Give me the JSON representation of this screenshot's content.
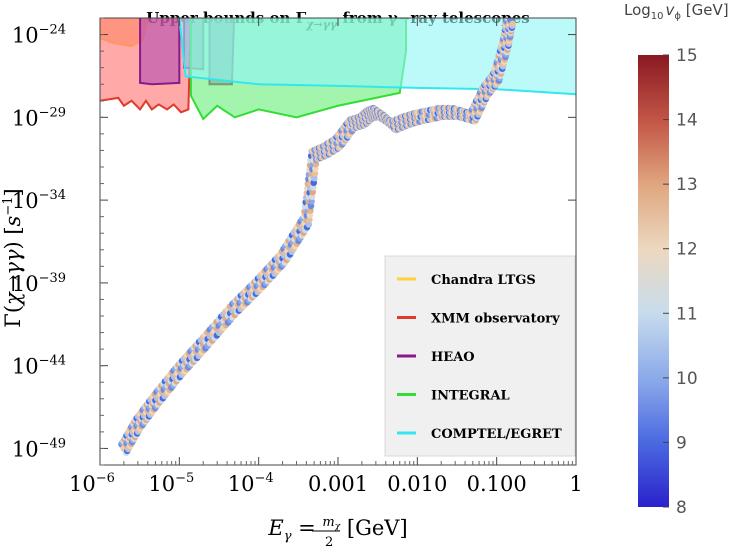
{
  "chart_data": {
    "type": "scatter",
    "title": "Upper bounds on Γ_{χ→γγ} from γ−ray telescopes",
    "xlabel": "E_γ = m_χ / 2 [GeV]",
    "ylabel": "Γ(χ→γγ) [s^-1]",
    "x_scale": "log",
    "y_scale": "log",
    "xlim": [
      1e-06,
      1
    ],
    "ylim": [
      1e-50,
      1e-23
    ],
    "x_ticks": [
      {
        "value": 1e-06,
        "label": "10",
        "exp": "−6"
      },
      {
        "value": 1e-05,
        "label": "10",
        "exp": "−5"
      },
      {
        "value": 0.0001,
        "label": "10",
        "exp": "−4"
      },
      {
        "value": 0.001,
        "label": "0.001",
        "exp": ""
      },
      {
        "value": 0.01,
        "label": "0.010",
        "exp": ""
      },
      {
        "value": 0.1,
        "label": "0.100",
        "exp": ""
      },
      {
        "value": 1,
        "label": "1",
        "exp": ""
      }
    ],
    "y_ticks": [
      {
        "value": 1e-24,
        "label": "10",
        "exp": "−24"
      },
      {
        "value": 1e-29,
        "label": "10",
        "exp": "−29"
      },
      {
        "value": 1e-34,
        "label": "10",
        "exp": "−34"
      },
      {
        "value": 1e-39,
        "label": "10",
        "exp": "−39"
      },
      {
        "value": 1e-44,
        "label": "10",
        "exp": "−44"
      },
      {
        "value": 1e-49,
        "label": "10",
        "exp": "−49"
      }
    ],
    "grid": false,
    "legend_position": "bottom-right",
    "legend": [
      {
        "name": "Chandra LTGS",
        "color": "#ffd23a"
      },
      {
        "name": "XMM observatory",
        "color": "#e03a2a"
      },
      {
        "name": "HEAO",
        "color": "#8a1a8a"
      },
      {
        "name": "INTEGRAL",
        "color": "#33dd33"
      },
      {
        "name": "COMPTEL/EGRET",
        "color": "#33e6f0"
      }
    ],
    "constraints": [
      {
        "name": "Chandra LTGS",
        "color": "#ffd23a",
        "fill": "#ffaa55",
        "boundary": [
          [
            1e-06,
            6e-25
          ],
          [
            1.5e-06,
            3e-25
          ],
          [
            2.5e-06,
            2e-25
          ],
          [
            3.5e-06,
            5e-25
          ],
          [
            4e-06,
            1e-23
          ]
        ]
      },
      {
        "name": "XMM observatory",
        "color": "#e03a2a",
        "fill": "#ff7070",
        "boundary": [
          [
            1e-06,
            1e-28
          ],
          [
            1.7e-06,
            1.5e-28
          ],
          [
            2e-06,
            5e-29
          ],
          [
            2.5e-06,
            1e-28
          ],
          [
            3.2e-06,
            3e-29
          ],
          [
            3.8e-06,
            1e-28
          ],
          [
            4.5e-06,
            3e-29
          ],
          [
            5.5e-06,
            6e-29
          ],
          [
            7e-06,
            3e-29
          ],
          [
            8.5e-06,
            6e-29
          ],
          [
            1.05e-05,
            2e-29
          ],
          [
            1.3e-05,
            3e-29
          ],
          [
            1.4e-05,
            1e-23
          ]
        ]
      },
      {
        "name": "HEAO",
        "color": "#8a1a8a",
        "fill": "#b34fb3",
        "boundary": [
          [
            3.2e-06,
            1e-23
          ],
          [
            3.2e-06,
            1.2e-27
          ],
          [
            4.5e-06,
            1e-27
          ],
          [
            1e-05,
            1.2e-27
          ],
          [
            1e-05,
            1e-23
          ],
          [
            1.15e-05,
            1e-23
          ],
          [
            1.15e-05,
            1e-26
          ],
          [
            2e-05,
            8e-27
          ],
          [
            2e-05,
            1e-23
          ],
          [
            2.4e-05,
            1e-23
          ],
          [
            2.4e-05,
            1e-27
          ],
          [
            4.6e-05,
            1e-27
          ],
          [
            4.9e-05,
            1e-23
          ]
        ]
      },
      {
        "name": "INTEGRAL",
        "color": "#33dd33",
        "fill": "#66ee77",
        "boundary": [
          [
            1.4e-05,
            1e-23
          ],
          [
            1.4e-05,
            2e-28
          ],
          [
            2e-05,
            8e-30
          ],
          [
            3e-05,
            5e-29
          ],
          [
            5e-05,
            1e-29
          ],
          [
            0.0001,
            3e-29
          ],
          [
            0.0003,
            1e-29
          ],
          [
            0.001,
            5e-29
          ],
          [
            0.003,
            1.5e-28
          ],
          [
            0.006,
            3e-28
          ],
          [
            0.0072,
            1e-25
          ],
          [
            0.0072,
            1e-23
          ]
        ]
      },
      {
        "name": "COMPTEL/EGRET",
        "color": "#33e6f0",
        "fill": "#8ff7f7",
        "boundary": [
          [
            1e-05,
            1e-23
          ],
          [
            1.2e-05,
            3e-27
          ],
          [
            0.0001,
            1e-27
          ],
          [
            0.001,
            8e-28
          ],
          [
            0.01,
            6e-28
          ],
          [
            0.1,
            5e-28
          ],
          [
            1,
            2.5e-28
          ]
        ]
      }
    ],
    "points_colorbar": {
      "label": "Log10 v_φ [GeV]",
      "label_text": "Log",
      "label_sub": "10",
      "label_var": "v",
      "label_var_sub": "ϕ",
      "label_unit": " [GeV]",
      "min": 8,
      "max": 15,
      "ticks": [
        "8",
        "9",
        "10",
        "11",
        "12",
        "13",
        "14",
        "15"
      ]
    },
    "series": [
      {
        "name": "",
        "x": [
          2e-06,
          3e-06,
          5e-06,
          1e-05,
          2e-05,
          5e-05,
          0.0001,
          0.0002,
          0.0004,
          0.0005,
          0.0007,
          0.001,
          0.0015,
          0.002,
          0.0025,
          0.003,
          0.004,
          0.005,
          0.007,
          0.01,
          0.02,
          0.03,
          0.05,
          0.07,
          0.1,
          0.13,
          0.15
        ],
        "y": [
          1e-49,
          3e-48,
          8e-47,
          5e-45,
          2e-43,
          3e-41,
          8e-40,
          3e-38,
          6e-36,
          5e-32,
          1e-31,
          3e-31,
          4e-30,
          6e-30,
          1.5e-29,
          2e-29,
          8e-30,
          3e-30,
          6e-30,
          1e-29,
          2e-29,
          2e-29,
          1e-29,
          3e-28,
          3e-27,
          3e-25,
          1e-23
        ]
      }
    ]
  }
}
